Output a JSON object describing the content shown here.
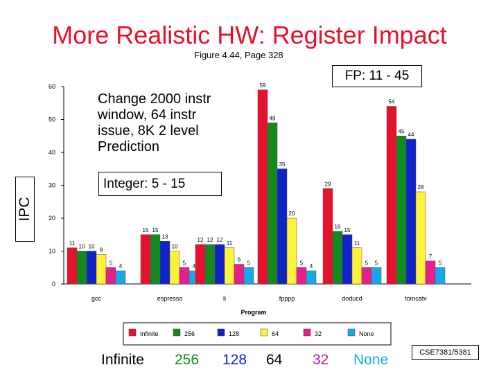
{
  "slide": {
    "title": "More Realistic HW: Register Impact",
    "subtitle": "Figure 4.44, Page 328",
    "fp_label": "FP: 11 - 45",
    "note_lines": [
      "Change  2000 instr",
      "window, 64 instr",
      "issue, 8K 2 level",
      "Prediction"
    ],
    "int_label": "Integer: 5 - 15",
    "ipc_label": "IPC",
    "footer": "CSE7381/5381"
  },
  "chart_data": {
    "type": "bar",
    "xlabel": "Program",
    "ylim": [
      0,
      60
    ],
    "yticks": [
      0,
      10,
      20,
      30,
      40,
      50,
      60
    ],
    "categories": [
      "gcc",
      "espresso",
      "li",
      "fpppp",
      "doducd",
      "tomcatv"
    ],
    "series": [
      {
        "name": "Infinite",
        "color": "#e8112d",
        "values": [
          11,
          15,
          12,
          59,
          29,
          54
        ]
      },
      {
        "name": "256",
        "color": "#138a1e",
        "values": [
          10,
          15,
          12,
          49,
          16,
          45
        ]
      },
      {
        "name": "128",
        "color": "#1022c8",
        "values": [
          10,
          13,
          12,
          35,
          15,
          44
        ]
      },
      {
        "name": "64",
        "color": "#fff23a",
        "values": [
          9,
          10,
          11,
          20,
          11,
          28
        ]
      },
      {
        "name": "32",
        "color": "#ea1d8e",
        "values": [
          5,
          5,
          6,
          5,
          5,
          7
        ]
      },
      {
        "name": "None",
        "color": "#16a9e6",
        "values": [
          4,
          4,
          5,
          4,
          5,
          5
        ]
      }
    ],
    "data_labels": [
      [
        "11",
        "10",
        "10",
        "9",
        "5",
        "4"
      ],
      [
        "15",
        "15",
        "13",
        "10",
        "5",
        "4"
      ],
      [
        "12",
        "12",
        "12",
        "11",
        "6",
        "5"
      ],
      [
        "59",
        "49",
        "35",
        "20",
        "5",
        "4"
      ],
      [
        "29",
        "16",
        "15",
        "11",
        "5",
        "5"
      ],
      [
        "54",
        "45",
        "44",
        "28",
        "7",
        "5"
      ]
    ],
    "big_legend": [
      "Infinite",
      "256",
      "128",
      "64",
      "32",
      "None"
    ]
  }
}
